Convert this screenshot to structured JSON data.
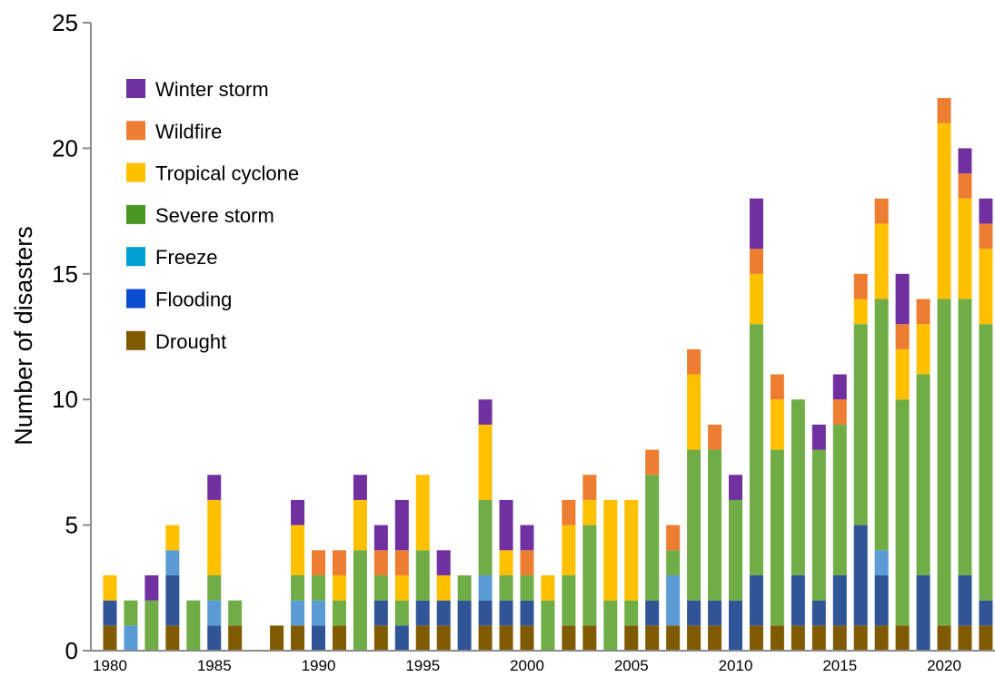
{
  "chart_data": {
    "type": "bar",
    "stacked": true,
    "title": "",
    "xlabel": "",
    "ylabel": "Number of disasters",
    "ylim": [
      0,
      25
    ],
    "yticks": [
      0,
      5,
      10,
      15,
      20,
      25
    ],
    "xticks": [
      1980,
      1985,
      1990,
      1995,
      2000,
      2005,
      2010,
      2015,
      2020
    ],
    "grid": false,
    "legend_position": "top-left",
    "legend_order": [
      "Winter storm",
      "Wildfire",
      "Tropical cyclone",
      "Severe storm",
      "Freeze",
      "Flooding",
      "Drought"
    ],
    "colors": {
      "Drought": "#7f5a00",
      "Flooding": "#2f5597",
      "Freeze": "#5b9bd5",
      "Severe storm": "#70ad47",
      "Tropical cyclone": "#ffc000",
      "Wildfire": "#ed7d31",
      "Winter storm": "#7030a0"
    },
    "legend_colors": {
      "Winter storm": "#7030a0",
      "Wildfire": "#ed7d31",
      "Tropical cyclone": "#ffc000",
      "Severe storm": "#4a9623",
      "Freeze": "#00a2d3",
      "Flooding": "#0b4ed2",
      "Drought": "#7f5a00"
    },
    "categories": [
      1980,
      1981,
      1982,
      1983,
      1984,
      1985,
      1986,
      1987,
      1988,
      1989,
      1990,
      1991,
      1992,
      1993,
      1994,
      1995,
      1996,
      1997,
      1998,
      1999,
      2000,
      2001,
      2002,
      2003,
      2004,
      2005,
      2006,
      2007,
      2008,
      2009,
      2010,
      2011,
      2012,
      2013,
      2014,
      2015,
      2016,
      2017,
      2018,
      2019,
      2020,
      2021,
      2022
    ],
    "series": [
      {
        "name": "Drought",
        "values": [
          1,
          0,
          0,
          1,
          0,
          0,
          1,
          0,
          1,
          1,
          0,
          1,
          0,
          1,
          0,
          1,
          1,
          0,
          1,
          1,
          1,
          0,
          1,
          1,
          0,
          1,
          1,
          1,
          1,
          1,
          0,
          1,
          1,
          1,
          1,
          1,
          1,
          1,
          1,
          0,
          1,
          1,
          1
        ]
      },
      {
        "name": "Flooding",
        "values": [
          1,
          0,
          0,
          2,
          0,
          1,
          0,
          0,
          0,
          0,
          1,
          0,
          0,
          1,
          1,
          1,
          1,
          2,
          1,
          1,
          1,
          0,
          0,
          0,
          0,
          0,
          1,
          0,
          1,
          1,
          2,
          2,
          0,
          2,
          1,
          2,
          4,
          2,
          0,
          3,
          0,
          2,
          1
        ]
      },
      {
        "name": "Freeze",
        "values": [
          0,
          1,
          0,
          1,
          0,
          1,
          0,
          0,
          0,
          1,
          1,
          0,
          0,
          0,
          0,
          0,
          0,
          0,
          1,
          0,
          0,
          0,
          0,
          0,
          0,
          0,
          0,
          2,
          0,
          0,
          0,
          0,
          0,
          0,
          0,
          0,
          0,
          1,
          0,
          0,
          0,
          0,
          0
        ]
      },
      {
        "name": "Severe storm",
        "values": [
          0,
          1,
          2,
          0,
          2,
          1,
          1,
          0,
          0,
          1,
          1,
          1,
          4,
          1,
          1,
          2,
          0,
          1,
          3,
          1,
          1,
          2,
          2,
          4,
          2,
          1,
          5,
          1,
          6,
          6,
          4,
          10,
          7,
          7,
          6,
          6,
          8,
          10,
          9,
          8,
          13,
          11,
          11
        ]
      },
      {
        "name": "Tropical cyclone",
        "values": [
          1,
          0,
          0,
          1,
          0,
          3,
          0,
          0,
          0,
          2,
          0,
          1,
          2,
          0,
          1,
          3,
          1,
          0,
          3,
          1,
          0,
          1,
          2,
          1,
          4,
          4,
          0,
          0,
          3,
          0,
          0,
          2,
          2,
          0,
          0,
          0,
          1,
          3,
          2,
          2,
          7,
          4,
          3
        ]
      },
      {
        "name": "Wildfire",
        "values": [
          0,
          0,
          0,
          0,
          0,
          0,
          0,
          0,
          0,
          0,
          1,
          1,
          0,
          1,
          1,
          0,
          0,
          0,
          0,
          0,
          1,
          0,
          1,
          1,
          0,
          0,
          1,
          1,
          1,
          1,
          0,
          1,
          1,
          0,
          0,
          1,
          1,
          1,
          1,
          1,
          1,
          1,
          1
        ]
      },
      {
        "name": "Winter storm",
        "values": [
          0,
          0,
          1,
          0,
          0,
          1,
          0,
          0,
          0,
          1,
          0,
          0,
          1,
          1,
          2,
          0,
          1,
          0,
          1,
          2,
          1,
          0,
          0,
          0,
          0,
          0,
          0,
          0,
          0,
          0,
          1,
          2,
          0,
          0,
          1,
          1,
          0,
          0,
          2,
          0,
          0,
          1,
          1
        ]
      }
    ]
  }
}
